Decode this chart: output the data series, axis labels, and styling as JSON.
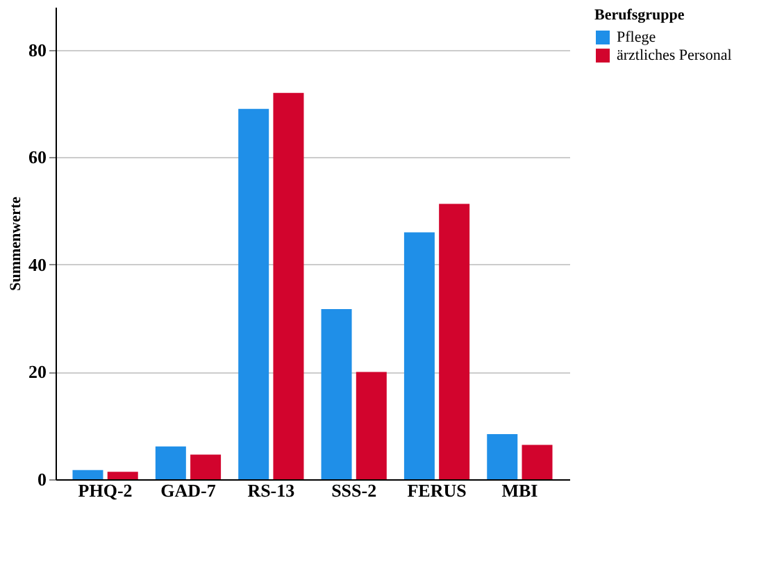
{
  "chart_data": {
    "type": "bar",
    "ylabel": "Summenwerte",
    "legend_title": "Berufsgruppe",
    "categories": [
      "PHQ-2",
      "GAD-7",
      "RS-13",
      "SSS-2",
      "FERUS",
      "MBI"
    ],
    "series": [
      {
        "name": "Pflege",
        "color": "#1f8fe8",
        "values": [
          1.7,
          6.1,
          69.0,
          31.7,
          46.0,
          8.4
        ]
      },
      {
        "name": "ärztliches Personal",
        "color": "#d2042d",
        "values": [
          1.4,
          4.6,
          72.0,
          20.0,
          51.3,
          6.4
        ]
      }
    ],
    "ylim": [
      0,
      88
    ],
    "yticks": [
      0,
      20,
      40,
      60,
      80
    ],
    "grid": "y",
    "legend": "top right"
  }
}
